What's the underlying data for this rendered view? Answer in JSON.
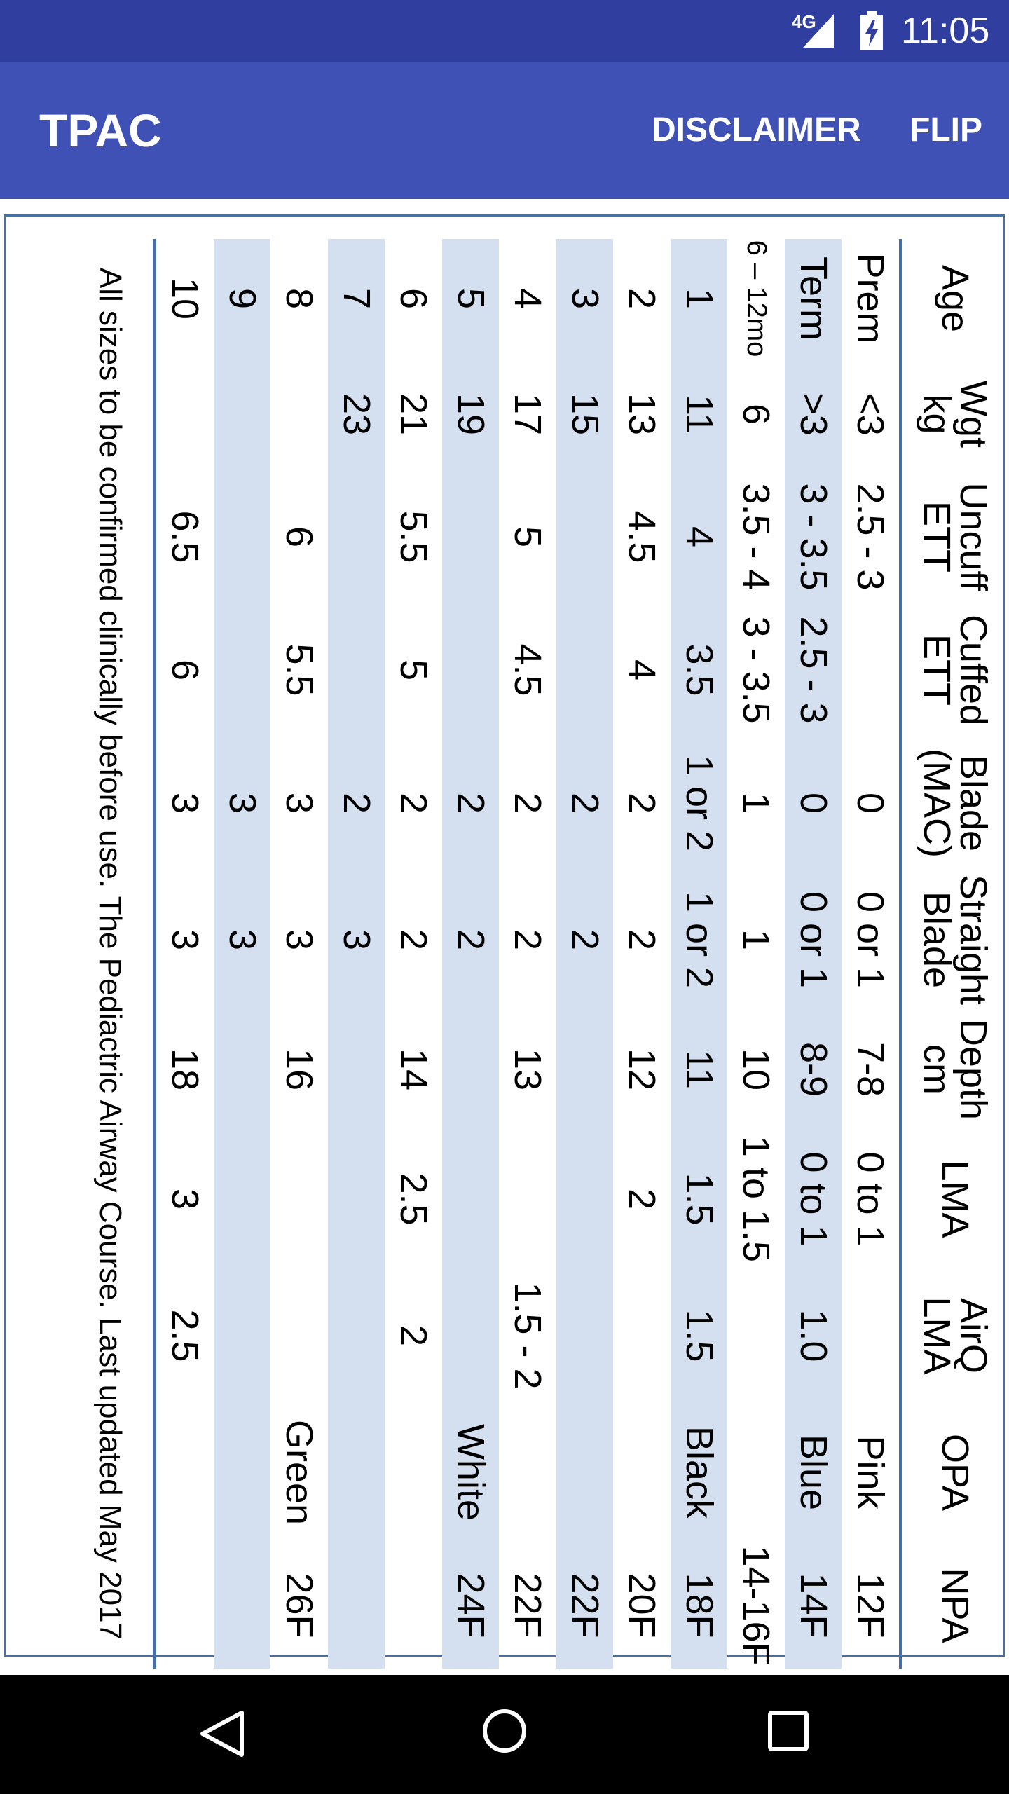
{
  "status_bar": {
    "network": "4G",
    "time": "11:05",
    "icons": [
      "signal-icon",
      "battery-charging-icon"
    ]
  },
  "app_bar": {
    "title": "TPAC",
    "actions": [
      "DISCLAIMER",
      "FLIP"
    ]
  },
  "table": {
    "headers": [
      [
        "Age"
      ],
      [
        "Wgt",
        "kg"
      ],
      [
        "Uncuff",
        "ETT"
      ],
      [
        "Cuffed",
        "ETT"
      ],
      [
        "Blade",
        "(MAC)"
      ],
      [
        "Straight",
        "Blade"
      ],
      [
        "Depth",
        "cm"
      ],
      [
        "LMA"
      ],
      [
        "AirQ",
        "LMA"
      ],
      [
        "OPA"
      ],
      [
        "NPA"
      ]
    ],
    "rows": [
      [
        "Prem",
        "<3",
        "2.5 - 3",
        "",
        "0",
        "0 or 1",
        "7-8",
        "0 to 1",
        "",
        "Pink",
        "12F"
      ],
      [
        "Term",
        ">3",
        "3 - 3.5",
        "2.5 - 3",
        "0",
        "0 or 1",
        "8-9",
        "0 to 1",
        "1.0",
        "Blue",
        "14F"
      ],
      [
        "6 – 12mo",
        "6",
        "3.5 - 4",
        "3 - 3.5",
        "1",
        "1",
        "10",
        "1 to 1.5",
        "",
        "",
        "14-16F"
      ],
      [
        "1",
        "11",
        "4",
        "3.5",
        "1 or 2",
        "1 or 2",
        "11",
        "1.5",
        "1.5",
        "Black",
        "18F"
      ],
      [
        "2",
        "13",
        "4.5",
        "4",
        "2",
        "2",
        "12",
        "2",
        "",
        "",
        "20F"
      ],
      [
        "3",
        "15",
        "",
        "",
        "2",
        "2",
        "",
        "",
        "",
        "",
        "22F"
      ],
      [
        "4",
        "17",
        "5",
        "4.5",
        "2",
        "2",
        "13",
        "",
        "1.5 - 2",
        "",
        "22F"
      ],
      [
        "5",
        "19",
        "",
        "",
        "2",
        "2",
        "",
        "",
        "",
        "White",
        "24F"
      ],
      [
        "6",
        "21",
        "5.5",
        "5",
        "2",
        "2",
        "14",
        "2.5",
        "2",
        "",
        ""
      ],
      [
        "7",
        "23",
        "",
        "",
        "2",
        "3",
        "",
        "",
        "",
        "",
        ""
      ],
      [
        "8",
        "",
        "6",
        "5.5",
        "3",
        "3",
        "16",
        "",
        "",
        "Green",
        "26F"
      ],
      [
        "9",
        "",
        "",
        "",
        "3",
        "3",
        "",
        "",
        "",
        "",
        ""
      ],
      [
        "10",
        "",
        "6.5",
        "6",
        "3",
        "3",
        "18",
        "3",
        "2.5",
        "",
        ""
      ]
    ],
    "shaded_rows": [
      1,
      3,
      5,
      7,
      9,
      11
    ],
    "footnote": "All sizes to be confirmed clinically before use. The Pediactric Airway Course. Last updated May 2017"
  },
  "colors": {
    "status_bar": "#303f9f",
    "app_bar": "#3f51b5",
    "row_shade": "#d4dff0",
    "rule": "#4a6fa5"
  },
  "nav_bar": {
    "icons": [
      "back-icon",
      "home-icon",
      "recents-icon"
    ]
  }
}
